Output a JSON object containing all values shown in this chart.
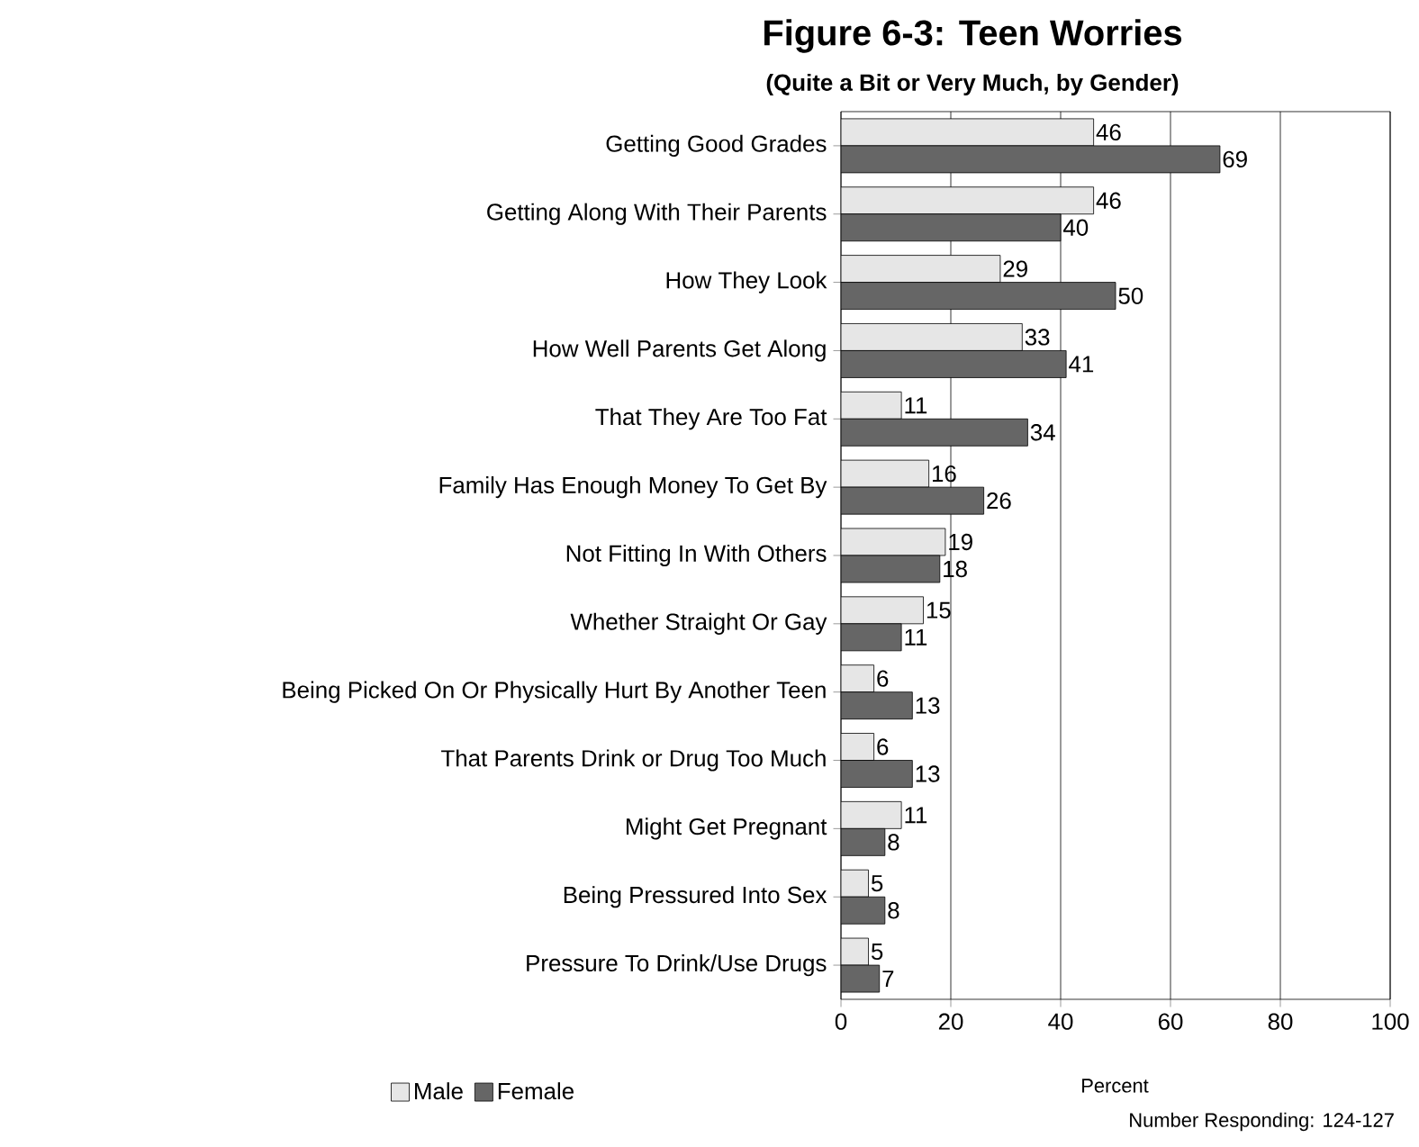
{
  "chart_data": {
    "type": "bar",
    "orientation": "horizontal",
    "title": "Figure 6-3: Teen Worries",
    "subtitle": "(Quite a Bit or Very Much, by Gender)",
    "xlabel": "Percent",
    "categories": [
      "Getting Good Grades",
      "Getting Along With Their Parents",
      "How They Look",
      "How Well Parents Get Along",
      "That They Are Too Fat",
      "Family Has Enough Money To Get By",
      "Not Fitting In With Others",
      "Whether Straight Or Gay",
      "Being Picked On Or Physically Hurt By Another Teen",
      "That Parents Drink or Drug Too Much",
      "Might Get Pregnant",
      "Being Pressured Into Sex",
      "Pressure To Drink/Use Drugs"
    ],
    "series": [
      {
        "name": "Male",
        "color": "#e6e6e6",
        "values": [
          46,
          46,
          29,
          33,
          11,
          16,
          19,
          15,
          6,
          6,
          11,
          5,
          5
        ]
      },
      {
        "name": "Female",
        "color": "#666666",
        "values": [
          69,
          40,
          50,
          41,
          34,
          26,
          18,
          11,
          13,
          13,
          8,
          8,
          7
        ]
      }
    ],
    "xlim": [
      0,
      100
    ],
    "xticks": [
      0,
      20,
      40,
      60,
      80,
      100
    ],
    "grid": "x",
    "legend": "bottom left",
    "data_labels": true,
    "annotations": [
      "Number Responding: 124-127"
    ]
  }
}
